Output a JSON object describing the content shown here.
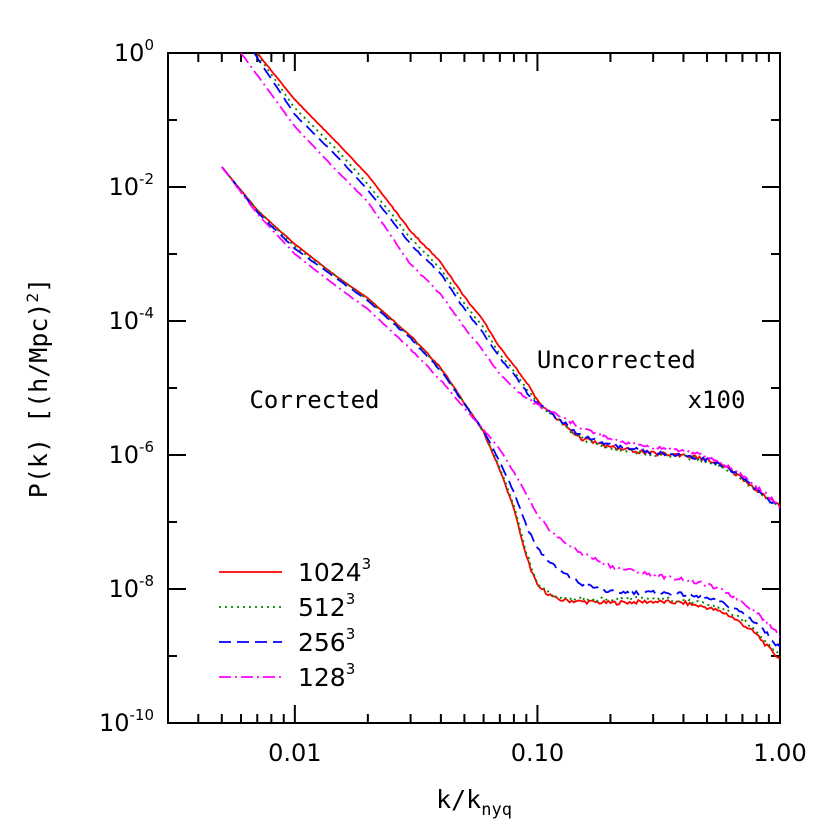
{
  "chart_data": {
    "type": "line",
    "title": "",
    "xlabel": "k/k",
    "xlabel_sub": "nyq",
    "ylabel": "P(k)  [(h/Mpc)",
    "ylabel_sup": "2",
    "ylabel_end": "]",
    "xscale": "log",
    "yscale": "log",
    "xlim": [
      0.003,
      1.0
    ],
    "ylim": [
      1e-10,
      1
    ],
    "grid": false,
    "legend_position": "bottom-left",
    "x_ticks": [
      {
        "value": 0.01,
        "label": "0.01"
      },
      {
        "value": 0.1,
        "label": "0.10"
      },
      {
        "value": 1.0,
        "label": "1.00"
      }
    ],
    "y_ticks": [
      {
        "value": 1,
        "base": "10",
        "exp": "0"
      },
      {
        "value": 0.01,
        "base": "10",
        "exp": "-2"
      },
      {
        "value": 0.0001,
        "base": "10",
        "exp": "-4"
      },
      {
        "value": 1e-06,
        "base": "10",
        "exp": "-6"
      },
      {
        "value": 1e-08,
        "base": "10",
        "exp": "-8"
      },
      {
        "value": 1e-10,
        "base": "10",
        "exp": "-10"
      }
    ],
    "annotations": [
      {
        "text": "Uncorrected",
        "x": 0.45,
        "y": 2e-05
      },
      {
        "text": "x100",
        "x": 0.72,
        "y": 5e-06
      },
      {
        "text": "Corrected",
        "x": 0.0065,
        "y": 5e-06
      }
    ],
    "series": [
      {
        "name": "1024",
        "sup": "3",
        "group": "corrected",
        "color": "#ff0000",
        "dash": "",
        "x": [
          0.005,
          0.007,
          0.01,
          0.015,
          0.02,
          0.03,
          0.04,
          0.05,
          0.06,
          0.07,
          0.08,
          0.09,
          0.1,
          0.12,
          0.15,
          0.2,
          0.3,
          0.4,
          0.5,
          0.6,
          0.7,
          0.8,
          0.9,
          1.0
        ],
        "y": [
          0.02,
          0.0045,
          0.0014,
          0.00045,
          0.00022,
          6e-05,
          2e-05,
          6e-06,
          2.2e-06,
          6e-07,
          1.6e-07,
          3e-08,
          1.1e-08,
          7e-09,
          6.5e-09,
          6.2e-09,
          6.5e-09,
          6.2e-09,
          5.3e-09,
          4.3e-09,
          3e-09,
          2.1e-09,
          1.3e-09,
          9e-10
        ]
      },
      {
        "name": "512",
        "sup": "3",
        "group": "corrected",
        "color": "#008800",
        "dash": "2,4",
        "x": [
          0.005,
          0.007,
          0.01,
          0.015,
          0.02,
          0.03,
          0.04,
          0.05,
          0.06,
          0.07,
          0.08,
          0.09,
          0.1,
          0.12,
          0.15,
          0.2,
          0.3,
          0.4,
          0.5,
          0.6,
          0.7,
          0.8,
          0.9,
          1.0
        ],
        "y": [
          0.02,
          0.0045,
          0.0013,
          0.00045,
          0.00021,
          5.8e-05,
          1.9e-05,
          6e-06,
          2.2e-06,
          6.5e-07,
          1.8e-07,
          3.5e-08,
          1.2e-08,
          7.5e-09,
          7e-09,
          7e-09,
          7.2e-09,
          6.8e-09,
          5.9e-09,
          4.8e-09,
          3.4e-09,
          2.4e-09,
          1.5e-09,
          1e-09
        ]
      },
      {
        "name": "256",
        "sup": "3",
        "group": "corrected",
        "color": "#0000ff",
        "dash": "12,6",
        "x": [
          0.005,
          0.007,
          0.01,
          0.015,
          0.02,
          0.03,
          0.04,
          0.05,
          0.06,
          0.07,
          0.08,
          0.09,
          0.1,
          0.12,
          0.15,
          0.2,
          0.3,
          0.4,
          0.5,
          0.6,
          0.7,
          0.8,
          0.9,
          1.0
        ],
        "y": [
          0.02,
          0.0042,
          0.0012,
          0.00042,
          0.0002,
          5.5e-05,
          1.8e-05,
          5.8e-06,
          2.3e-06,
          8e-07,
          2.8e-07,
          9e-08,
          4e-08,
          2e-08,
          1.2e-08,
          9e-09,
          8.8e-09,
          8.3e-09,
          7.2e-09,
          5.9e-09,
          4.4e-09,
          3.1e-09,
          2e-09,
          1.3e-09
        ]
      },
      {
        "name": "128",
        "sup": "3",
        "group": "corrected",
        "color": "#ff00ff",
        "dash": "12,4,2,4",
        "x": [
          0.005,
          0.007,
          0.01,
          0.015,
          0.02,
          0.03,
          0.04,
          0.05,
          0.06,
          0.07,
          0.08,
          0.09,
          0.1,
          0.12,
          0.15,
          0.2,
          0.3,
          0.4,
          0.5,
          0.6,
          0.7,
          0.8,
          0.9,
          1.0
        ],
        "y": [
          0.02,
          0.004,
          0.001,
          0.00032,
          0.00015,
          3.8e-05,
          1.3e-05,
          5e-06,
          2.4e-06,
          1.2e-06,
          5.5e-07,
          2.6e-07,
          1.2e-07,
          6e-08,
          3.5e-08,
          2.2e-08,
          1.6e-08,
          1.4e-08,
          1.15e-08,
          9e-09,
          6.5e-09,
          4.5e-09,
          3e-09,
          2e-09
        ]
      },
      {
        "name": "",
        "group": "uncorrected",
        "color": "#ff0000",
        "dash": "",
        "x": [
          0.007,
          0.01,
          0.015,
          0.02,
          0.03,
          0.04,
          0.05,
          0.06,
          0.07,
          0.08,
          0.09,
          0.1,
          0.12,
          0.15,
          0.2,
          0.3,
          0.4,
          0.5,
          0.6,
          0.7,
          0.8,
          0.9,
          1.0
        ],
        "y": [
          1,
          0.2,
          0.045,
          0.015,
          0.0022,
          0.00075,
          0.00023,
          0.0001,
          4e-05,
          2.2e-05,
          1.2e-05,
          6.5e-06,
          3.5e-06,
          1.8e-06,
          1.3e-06,
          1.05e-06,
          1e-06,
          8.5e-07,
          6.5e-07,
          4.5e-07,
          3e-07,
          2.2e-07,
          1.7e-07
        ]
      },
      {
        "name": "",
        "group": "uncorrected",
        "color": "#008800",
        "dash": "2,4",
        "x": [
          0.007,
          0.01,
          0.015,
          0.02,
          0.03,
          0.04,
          0.05,
          0.06,
          0.07,
          0.08,
          0.09,
          0.1,
          0.12,
          0.15,
          0.2,
          0.3,
          0.4,
          0.5,
          0.6,
          0.7,
          0.8,
          0.9,
          1.0
        ],
        "y": [
          0.95,
          0.15,
          0.035,
          0.011,
          0.0017,
          0.0006,
          0.00018,
          8e-05,
          3.2e-05,
          1.8e-05,
          1e-05,
          6e-06,
          3.4e-06,
          1.8e-06,
          1.25e-06,
          1e-06,
          9.5e-07,
          8e-07,
          6.2e-07,
          4.3e-07,
          2.9e-07,
          2.1e-07,
          1.6e-07
        ]
      },
      {
        "name": "",
        "group": "uncorrected",
        "color": "#0000ff",
        "dash": "12,6",
        "x": [
          0.0068,
          0.01,
          0.015,
          0.02,
          0.03,
          0.04,
          0.05,
          0.06,
          0.07,
          0.08,
          0.09,
          0.1,
          0.12,
          0.15,
          0.2,
          0.3,
          0.4,
          0.5,
          0.6,
          0.7,
          0.8,
          0.9,
          1.0
        ],
        "y": [
          1,
          0.12,
          0.028,
          0.009,
          0.0014,
          0.0005,
          0.00015,
          6.5e-05,
          2.8e-05,
          1.6e-05,
          9e-06,
          6e-06,
          3.6e-06,
          2e-06,
          1.4e-06,
          1.1e-06,
          1e-06,
          8.5e-07,
          6.5e-07,
          4.5e-07,
          3e-07,
          2.2e-07,
          1.6e-07
        ]
      },
      {
        "name": "",
        "group": "uncorrected",
        "color": "#ff00ff",
        "dash": "12,4,2,4",
        "x": [
          0.006,
          0.01,
          0.015,
          0.02,
          0.03,
          0.04,
          0.05,
          0.06,
          0.07,
          0.08,
          0.09,
          0.1,
          0.12,
          0.15,
          0.2,
          0.3,
          0.4,
          0.5,
          0.6,
          0.7,
          0.8,
          0.9,
          1.0
        ],
        "y": [
          1,
          0.08,
          0.017,
          0.006,
          0.0007,
          0.00025,
          8e-05,
          3.5e-05,
          1.6e-05,
          1e-05,
          7e-06,
          5.5e-06,
          4e-06,
          2.6e-06,
          1.7e-06,
          1.3e-06,
          1.15e-06,
          9.5e-07,
          7e-07,
          5e-07,
          3.3e-07,
          2.4e-07,
          1.7e-07
        ]
      }
    ]
  }
}
